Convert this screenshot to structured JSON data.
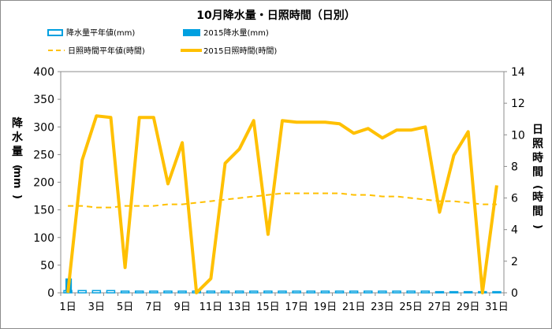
{
  "chart_data": {
    "type": "bar+line",
    "title": "10月降水量・日照時間（日別）",
    "legend": [
      {
        "label": "降水量平年値(mm)",
        "kind": "bar-outline",
        "color": "#00a0e0"
      },
      {
        "label": "2015降水量(mm)",
        "kind": "bar",
        "color": "#00a0e0"
      },
      {
        "label": "日照時間平年値(時間)",
        "kind": "dashed-line",
        "color": "#ffc000"
      },
      {
        "label": "2015日照時間(時間)",
        "kind": "line",
        "color": "#ffc000"
      }
    ],
    "ylabel_left": [
      "降",
      "水",
      "量",
      "(",
      "mm",
      ")"
    ],
    "ylabel_right": [
      "日",
      "照",
      "時",
      "間",
      "(",
      "時",
      "間",
      ")"
    ],
    "x_tick_labels": [
      "1日",
      "3日",
      "5日",
      "7日",
      "9日",
      "11日",
      "13日",
      "15日",
      "17日",
      "19日",
      "21日",
      "23日",
      "25日",
      "27日",
      "29日",
      "31日"
    ],
    "y_left_ticks": [
      "0",
      "50",
      "100",
      "150",
      "200",
      "250",
      "300",
      "350",
      "400"
    ],
    "y_right_ticks": [
      "0",
      "2",
      "4",
      "6",
      "8",
      "10",
      "12",
      "14"
    ],
    "ylim_left": [
      0,
      400
    ],
    "ylim_right": [
      0,
      14
    ],
    "days": [
      1,
      2,
      3,
      4,
      5,
      6,
      7,
      8,
      9,
      10,
      11,
      12,
      13,
      14,
      15,
      16,
      17,
      18,
      19,
      20,
      21,
      22,
      23,
      24,
      25,
      26,
      27,
      28,
      29,
      30,
      31
    ],
    "series": [
      {
        "name": "降水量平年値(mm)",
        "axis": "left",
        "values": [
          4,
          4,
          4,
          4,
          3,
          3,
          3,
          3,
          3,
          3,
          3,
          3,
          3,
          3,
          3,
          3,
          3,
          3,
          3,
          3,
          3,
          3,
          3,
          3,
          3,
          3,
          2,
          2,
          2,
          2,
          2
        ]
      },
      {
        "name": "2015降水量(mm)",
        "axis": "left",
        "values": [
          26,
          0,
          0,
          0,
          0,
          0,
          0,
          0,
          0,
          0,
          0,
          0,
          0,
          0,
          0,
          0,
          0,
          0,
          0,
          0,
          0,
          0,
          0,
          0,
          0,
          0,
          1,
          0,
          0,
          0,
          0
        ]
      },
      {
        "name": "日照時間平年値(時間)",
        "axis": "right",
        "values": [
          5.5,
          5.5,
          5.4,
          5.4,
          5.5,
          5.5,
          5.5,
          5.6,
          5.6,
          5.7,
          5.8,
          5.9,
          6.0,
          6.1,
          6.2,
          6.3,
          6.3,
          6.3,
          6.3,
          6.3,
          6.2,
          6.2,
          6.1,
          6.1,
          6.0,
          5.9,
          5.8,
          5.8,
          5.7,
          5.6,
          5.6
        ]
      },
      {
        "name": "2015日照時間(時間)",
        "axis": "right",
        "values": [
          0,
          8.4,
          11.2,
          11.1,
          1.6,
          11.1,
          11.1,
          6.9,
          9.5,
          0,
          0.9,
          8.2,
          9.1,
          10.9,
          3.7,
          10.9,
          10.8,
          10.8,
          10.8,
          10.7,
          10.1,
          10.4,
          9.8,
          10.3,
          10.3,
          10.5,
          5.1,
          8.7,
          10.2,
          0,
          6.8
        ]
      }
    ],
    "grid": false,
    "legend_placement": "top"
  }
}
